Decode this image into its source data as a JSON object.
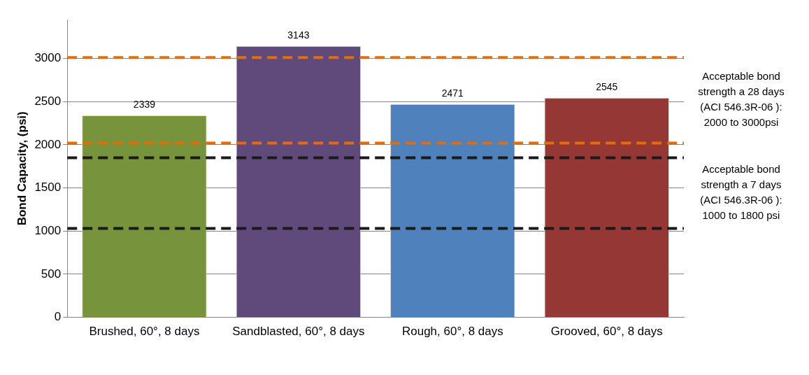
{
  "chart_data": {
    "type": "bar",
    "ylabel": "Bond Capacity, (psi)",
    "categories": [
      "Brushed, 60°, 8 days",
      "Sandblasted, 60°, 8 days",
      "Rough, 60°, 8 days",
      "Grooved, 60°, 8 days"
    ],
    "values": [
      2339,
      3143,
      2471,
      2545
    ],
    "colors": [
      "#77933c",
      "#604a7b",
      "#4f81bd",
      "#953735"
    ],
    "ylim": [
      0,
      3450
    ],
    "yticks": [
      0,
      500,
      1000,
      1500,
      2000,
      2500,
      3000
    ],
    "grid": "y",
    "legend": false,
    "data_labels": true,
    "ref_lines": [
      {
        "axis": "y",
        "value": 3010,
        "color": "#e46c0a",
        "line_style": "dashed"
      },
      {
        "axis": "y",
        "value": 2020,
        "color": "#e46c0a",
        "line_style": "dashed"
      },
      {
        "axis": "y",
        "value": 1850,
        "color": "#1a1a1a",
        "line_style": "dashed"
      },
      {
        "axis": "y",
        "value": 1030,
        "color": "#1a1a1a",
        "line_style": "dashed"
      }
    ],
    "annotations": [
      "Acceptable bond strength a 28 days (ACI 546.3R-06 ): 2000 to 3000psi",
      "Acceptable bond strength a 7 days (ACI 546.3R-06 ): 1000 to 1800 psi"
    ]
  }
}
